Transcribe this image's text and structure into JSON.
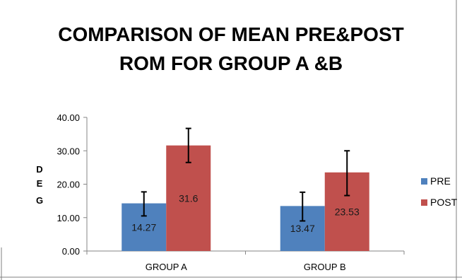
{
  "chart_data": {
    "type": "bar",
    "title_lines": [
      "COMPARISON OF MEAN PRE&POST",
      "ROM FOR GROUP A &B"
    ],
    "ylabel_letters": [
      "D",
      "E",
      "G"
    ],
    "categories": [
      "GROUP A",
      "GROUP B"
    ],
    "ylim": [
      0,
      40
    ],
    "yticks": [
      "0.00",
      "10.00",
      "20.00",
      "30.00",
      "40.00"
    ],
    "grid": false,
    "legend_position": "right",
    "series": [
      {
        "name": "PRE",
        "color": "#4f81bd",
        "values": [
          14.27,
          13.47
        ],
        "error_low": [
          10.5,
          9.0
        ],
        "error_high": [
          17.7,
          17.6
        ],
        "labels": [
          "14.27",
          "13.47"
        ]
      },
      {
        "name": "POST",
        "color": "#c0504d",
        "values": [
          31.6,
          23.53
        ],
        "error_low": [
          26.5,
          16.6
        ],
        "error_high": [
          36.7,
          30.0
        ],
        "labels": [
          "31.6",
          "23.53"
        ]
      }
    ]
  }
}
